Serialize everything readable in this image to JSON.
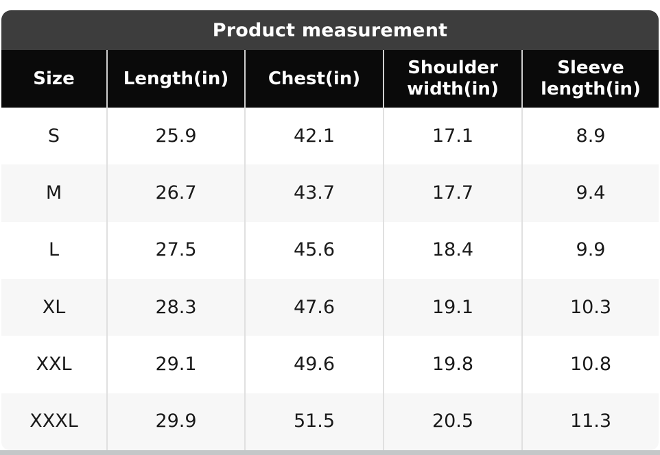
{
  "chart_data": {
    "type": "table",
    "title": "Product measurement",
    "columns": [
      "Size",
      "Length(in)",
      "Chest(in)",
      "Shoulder width(in)",
      "Sleeve length(in)"
    ],
    "rows": [
      [
        "S",
        "25.9",
        "42.1",
        "17.1",
        "8.9"
      ],
      [
        "M",
        "26.7",
        "43.7",
        "17.7",
        "9.4"
      ],
      [
        "L",
        "27.5",
        "45.6",
        "18.4",
        "9.9"
      ],
      [
        "XL",
        "28.3",
        "47.6",
        "19.1",
        "10.3"
      ],
      [
        "XXL",
        "29.1",
        "49.6",
        "19.8",
        "10.8"
      ],
      [
        "XXXL",
        "29.9",
        "51.5",
        "20.5",
        "11.3"
      ]
    ],
    "layout": {
      "legend": "none",
      "grid": "column-separators-and-row-striping",
      "header_position": "top"
    }
  },
  "colors": {
    "title_bar_bg": "#3d3d3d",
    "title_text": "#ffffff",
    "header_bg": "#0a0a0a",
    "header_text": "#ffffff",
    "row_bg": "#ffffff",
    "row_alt_bg": "#f7f7f7",
    "cell_text": "#1a1a1a",
    "separator": "#e0e0e0",
    "bottom_strip": "#c3c7c8"
  }
}
